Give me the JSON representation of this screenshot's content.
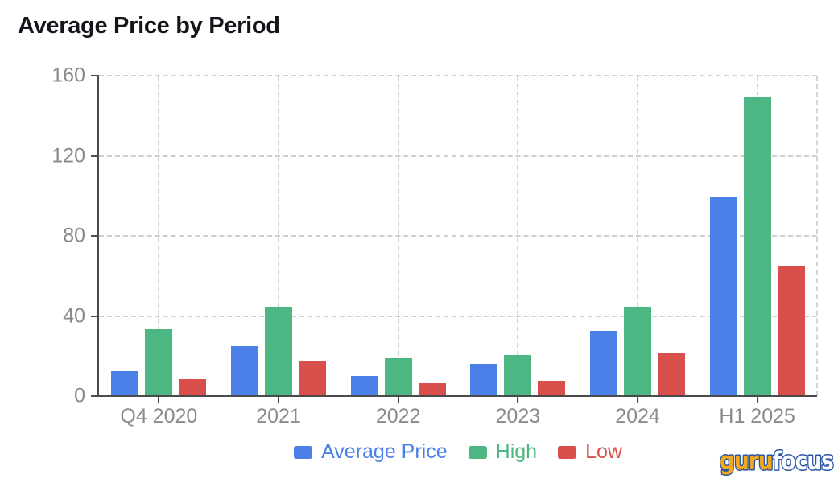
{
  "chart_data": {
    "type": "bar",
    "title": "Average Price by Period",
    "categories": [
      "Q4 2020",
      "2021",
      "2022",
      "2023",
      "2024",
      "H1 2025"
    ],
    "series": [
      {
        "name": "Average Price",
        "color": "#4B80E8",
        "values": [
          12.5,
          25,
          10,
          16,
          32.5,
          99.5
        ]
      },
      {
        "name": "High",
        "color": "#4DB783",
        "values": [
          33.5,
          44.5,
          19,
          20.5,
          44.5,
          149
        ]
      },
      {
        "name": "Low",
        "color": "#D94F4B",
        "values": [
          8.5,
          17.5,
          6.5,
          7.5,
          21.5,
          65
        ]
      }
    ],
    "ylim": [
      0,
      160
    ],
    "yticks": [
      0,
      40,
      80,
      120,
      160
    ],
    "grid": true,
    "legend_position": "bottom",
    "colors": {
      "axis": "#4a4a4a",
      "grid": "#cfcfcf",
      "tick_label": "#8b8b8b",
      "title": "#14151a",
      "background": "#ffffff"
    }
  },
  "branding": {
    "logo_text_guru": "guru",
    "logo_text_focus": "focus",
    "guru_color": "#F2A91C",
    "focus_color": "#FFFFFF",
    "outline_color": "#2A55A4"
  }
}
